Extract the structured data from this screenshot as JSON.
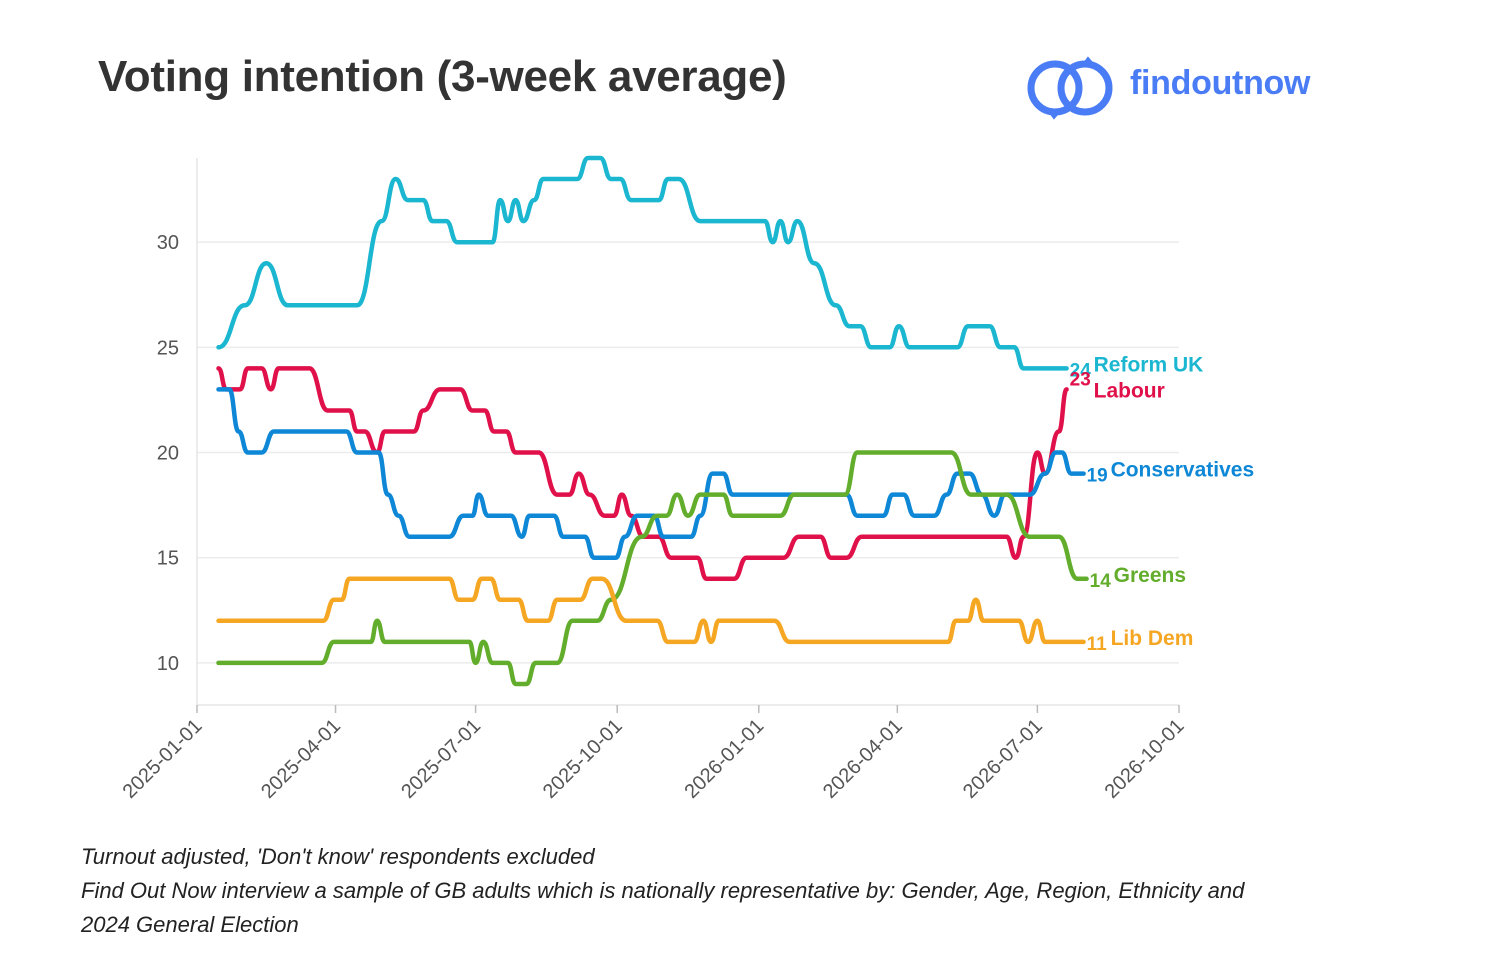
{
  "title": "Voting intention (3-week average)",
  "brand": {
    "name": "findoutnow",
    "color": "#4a7cf5",
    "icon": "linked-rings-icon"
  },
  "footnotes": [
    "Turnout adjusted, 'Don't know' respondents excluded",
    "Find Out Now interview a sample of GB adults which is nationally representative by: Gender, Age, Region, Ethnicity and",
    "2024 General Election"
  ],
  "chart_data": {
    "type": "line",
    "title": "Voting intention (3-week average)",
    "xlabel": "",
    "ylabel": "",
    "x_ticks": [
      "2025-01-01",
      "2025-04-01",
      "2025-07-01",
      "2025-10-01",
      "2026-01-01",
      "2026-04-01",
      "2026-07-01",
      "2026-10-01"
    ],
    "y_ticks": [
      10,
      15,
      20,
      25,
      30
    ],
    "ylim": [
      8,
      34
    ],
    "xlim": [
      "2025-01-01",
      "2026-10-01"
    ],
    "grid": true,
    "legend": "end-of-line labels",
    "series": [
      {
        "name": "Reform UK",
        "color": "#1bb6d0",
        "end_value": "24",
        "points": [
          [
            "2025-01-15",
            25
          ],
          [
            "2025-02-01",
            27
          ],
          [
            "2025-02-15",
            29
          ],
          [
            "2025-03-01",
            27
          ],
          [
            "2025-03-15",
            27
          ],
          [
            "2025-04-01",
            27
          ],
          [
            "2025-04-15",
            27
          ],
          [
            "2025-05-01",
            31
          ],
          [
            "2025-05-10",
            33
          ],
          [
            "2025-05-18",
            32
          ],
          [
            "2025-05-28",
            32
          ],
          [
            "2025-06-03",
            31
          ],
          [
            "2025-06-12",
            31
          ],
          [
            "2025-06-19",
            30
          ],
          [
            "2025-06-28",
            30
          ],
          [
            "2025-07-05",
            30
          ],
          [
            "2025-07-12",
            30
          ],
          [
            "2025-07-17",
            32
          ],
          [
            "2025-07-22",
            31
          ],
          [
            "2025-07-27",
            32
          ],
          [
            "2025-08-01",
            31
          ],
          [
            "2025-08-08",
            32
          ],
          [
            "2025-08-14",
            33
          ],
          [
            "2025-08-22",
            33
          ],
          [
            "2025-09-05",
            33
          ],
          [
            "2025-09-12",
            34
          ],
          [
            "2025-09-20",
            34
          ],
          [
            "2025-09-27",
            33
          ],
          [
            "2025-10-03",
            33
          ],
          [
            "2025-10-10",
            32
          ],
          [
            "2025-10-17",
            32
          ],
          [
            "2025-10-28",
            32
          ],
          [
            "2025-11-03",
            33
          ],
          [
            "2025-11-10",
            33
          ],
          [
            "2025-11-24",
            31
          ],
          [
            "2025-12-05",
            31
          ],
          [
            "2025-12-30",
            31
          ],
          [
            "2026-01-05",
            31
          ],
          [
            "2026-01-10",
            30
          ],
          [
            "2026-01-15",
            31
          ],
          [
            "2026-01-20",
            30
          ],
          [
            "2026-01-26",
            31
          ],
          [
            "2026-02-06",
            29
          ],
          [
            "2026-02-20",
            27
          ],
          [
            "2026-03-01",
            26
          ],
          [
            "2026-03-08",
            26
          ],
          [
            "2026-03-15",
            25
          ],
          [
            "2026-03-22",
            25
          ],
          [
            "2026-03-27",
            25
          ],
          [
            "2026-04-02",
            26
          ],
          [
            "2026-04-09",
            25
          ],
          [
            "2026-04-19",
            25
          ],
          [
            "2026-05-10",
            25
          ],
          [
            "2026-05-17",
            26
          ],
          [
            "2026-05-31",
            26
          ],
          [
            "2026-06-07",
            25
          ],
          [
            "2026-06-16",
            25
          ],
          [
            "2026-06-22",
            24
          ],
          [
            "2026-07-05",
            24
          ],
          [
            "2026-07-20",
            24
          ]
        ]
      },
      {
        "name": "Labour",
        "color": "#e0114a",
        "end_value": "23",
        "points": [
          [
            "2025-01-15",
            24
          ],
          [
            "2025-01-20",
            23
          ],
          [
            "2025-01-29",
            23
          ],
          [
            "2025-02-03",
            24
          ],
          [
            "2025-02-12",
            24
          ],
          [
            "2025-02-18",
            23
          ],
          [
            "2025-02-23",
            24
          ],
          [
            "2025-03-01",
            24
          ],
          [
            "2025-03-15",
            24
          ],
          [
            "2025-03-27",
            22
          ],
          [
            "2025-04-01",
            22
          ],
          [
            "2025-04-10",
            22
          ],
          [
            "2025-04-15",
            21
          ],
          [
            "2025-04-20",
            21
          ],
          [
            "2025-04-28",
            20
          ],
          [
            "2025-05-03",
            21
          ],
          [
            "2025-05-12",
            21
          ],
          [
            "2025-05-22",
            21
          ],
          [
            "2025-05-28",
            22
          ],
          [
            "2025-06-08",
            23
          ],
          [
            "2025-06-21",
            23
          ],
          [
            "2025-06-29",
            22
          ],
          [
            "2025-07-07",
            22
          ],
          [
            "2025-07-13",
            21
          ],
          [
            "2025-07-21",
            21
          ],
          [
            "2025-07-27",
            20
          ],
          [
            "2025-08-03",
            20
          ],
          [
            "2025-08-11",
            20
          ],
          [
            "2025-08-23",
            18
          ],
          [
            "2025-08-31",
            18
          ],
          [
            "2025-09-06",
            19
          ],
          [
            "2025-09-13",
            18
          ],
          [
            "2025-09-23",
            17
          ],
          [
            "2025-09-29",
            17
          ],
          [
            "2025-10-04",
            18
          ],
          [
            "2025-10-10",
            17
          ],
          [
            "2025-10-18",
            16
          ],
          [
            "2025-10-24",
            16
          ],
          [
            "2025-10-28",
            16
          ],
          [
            "2025-11-05",
            15
          ],
          [
            "2025-11-12",
            15
          ],
          [
            "2025-11-22",
            15
          ],
          [
            "2025-11-28",
            14
          ],
          [
            "2025-12-08",
            14
          ],
          [
            "2025-12-16",
            14
          ],
          [
            "2025-12-24",
            15
          ],
          [
            "2026-01-07",
            15
          ],
          [
            "2026-01-17",
            15
          ],
          [
            "2026-01-27",
            16
          ],
          [
            "2026-02-10",
            16
          ],
          [
            "2026-02-17",
            15
          ],
          [
            "2026-02-27",
            15
          ],
          [
            "2026-03-09",
            16
          ],
          [
            "2026-03-19",
            16
          ],
          [
            "2026-06-11",
            16
          ],
          [
            "2026-06-17",
            15
          ],
          [
            "2026-06-22",
            16
          ],
          [
            "2026-07-01",
            20
          ],
          [
            "2026-07-06",
            19
          ],
          [
            "2026-07-15",
            21
          ],
          [
            "2026-07-20",
            23
          ]
        ]
      },
      {
        "name": "Conservatives",
        "color": "#0d87d6",
        "end_value": "19",
        "points": [
          [
            "2025-01-15",
            23
          ],
          [
            "2025-01-22",
            23
          ],
          [
            "2025-01-28",
            21
          ],
          [
            "2025-02-03",
            20
          ],
          [
            "2025-02-12",
            20
          ],
          [
            "2025-02-20",
            21
          ],
          [
            "2025-03-15",
            21
          ],
          [
            "2025-04-01",
            21
          ],
          [
            "2025-04-08",
            21
          ],
          [
            "2025-04-15",
            20
          ],
          [
            "2025-04-29",
            20
          ],
          [
            "2025-05-05",
            18
          ],
          [
            "2025-05-12",
            17
          ],
          [
            "2025-05-19",
            16
          ],
          [
            "2025-06-14",
            16
          ],
          [
            "2025-06-23",
            17
          ],
          [
            "2025-06-29",
            17
          ],
          [
            "2025-07-03",
            18
          ],
          [
            "2025-07-09",
            17
          ],
          [
            "2025-07-24",
            17
          ],
          [
            "2025-07-31",
            16
          ],
          [
            "2025-08-05",
            17
          ],
          [
            "2025-08-21",
            17
          ],
          [
            "2025-08-27",
            16
          ],
          [
            "2025-09-10",
            16
          ],
          [
            "2025-09-16",
            15
          ],
          [
            "2025-09-30",
            15
          ],
          [
            "2025-10-06",
            16
          ],
          [
            "2025-10-14",
            17
          ],
          [
            "2025-10-25",
            17
          ],
          [
            "2025-10-31",
            16
          ],
          [
            "2025-11-18",
            16
          ],
          [
            "2025-11-24",
            17
          ],
          [
            "2025-12-02",
            19
          ],
          [
            "2025-12-09",
            19
          ],
          [
            "2025-12-15",
            18
          ],
          [
            "2026-01-04",
            18
          ],
          [
            "2026-01-24",
            18
          ],
          [
            "2026-02-27",
            18
          ],
          [
            "2026-03-06",
            17
          ],
          [
            "2026-03-23",
            17
          ],
          [
            "2026-03-29",
            18
          ],
          [
            "2026-04-05",
            18
          ],
          [
            "2026-04-12",
            17
          ],
          [
            "2026-04-25",
            17
          ],
          [
            "2026-05-03",
            18
          ],
          [
            "2026-05-10",
            19
          ],
          [
            "2026-05-18",
            19
          ],
          [
            "2026-05-26",
            18
          ],
          [
            "2026-06-03",
            17
          ],
          [
            "2026-06-10",
            18
          ],
          [
            "2026-06-26",
            18
          ],
          [
            "2026-07-06",
            19
          ],
          [
            "2026-07-13",
            20
          ],
          [
            "2026-07-17",
            20
          ],
          [
            "2026-07-23",
            19
          ],
          [
            "2026-07-31",
            19
          ]
        ]
      },
      {
        "name": "Greens",
        "color": "#63ad2c",
        "end_value": "14",
        "points": [
          [
            "2025-01-15",
            10
          ],
          [
            "2025-03-01",
            10
          ],
          [
            "2025-03-23",
            10
          ],
          [
            "2025-03-31",
            11
          ],
          [
            "2025-04-15",
            11
          ],
          [
            "2025-04-24",
            11
          ],
          [
            "2025-04-28",
            12
          ],
          [
            "2025-05-03",
            11
          ],
          [
            "2025-06-01",
            11
          ],
          [
            "2025-06-27",
            11
          ],
          [
            "2025-07-01",
            10
          ],
          [
            "2025-07-06",
            11
          ],
          [
            "2025-07-12",
            10
          ],
          [
            "2025-07-22",
            10
          ],
          [
            "2025-07-27",
            9
          ],
          [
            "2025-08-03",
            9
          ],
          [
            "2025-08-09",
            10
          ],
          [
            "2025-08-23",
            10
          ],
          [
            "2025-09-02",
            12
          ],
          [
            "2025-09-18",
            12
          ],
          [
            "2025-09-27",
            13
          ],
          [
            "2025-10-17",
            16
          ],
          [
            "2025-10-27",
            17
          ],
          [
            "2025-11-02",
            17
          ],
          [
            "2025-11-09",
            18
          ],
          [
            "2025-11-16",
            17
          ],
          [
            "2025-11-24",
            18
          ],
          [
            "2025-12-09",
            18
          ],
          [
            "2025-12-15",
            17
          ],
          [
            "2025-12-24",
            17
          ],
          [
            "2026-01-15",
            17
          ],
          [
            "2026-01-24",
            18
          ],
          [
            "2026-02-11",
            18
          ],
          [
            "2026-02-26",
            18
          ],
          [
            "2026-03-06",
            20
          ],
          [
            "2026-03-25",
            20
          ],
          [
            "2026-05-06",
            20
          ],
          [
            "2026-05-19",
            18
          ],
          [
            "2026-06-11",
            18
          ],
          [
            "2026-06-26",
            16
          ],
          [
            "2026-07-15",
            16
          ],
          [
            "2026-07-27",
            14
          ],
          [
            "2026-08-02",
            14
          ]
        ]
      },
      {
        "name": "Lib Dem",
        "color": "#f5a623",
        "end_value": "11",
        "points": [
          [
            "2025-01-15",
            12
          ],
          [
            "2025-02-12",
            12
          ],
          [
            "2025-03-15",
            12
          ],
          [
            "2025-03-24",
            12
          ],
          [
            "2025-03-31",
            13
          ],
          [
            "2025-04-05",
            13
          ],
          [
            "2025-04-10",
            14
          ],
          [
            "2025-05-01",
            14
          ],
          [
            "2025-05-25",
            14
          ],
          [
            "2025-06-14",
            14
          ],
          [
            "2025-06-20",
            13
          ],
          [
            "2025-06-29",
            13
          ],
          [
            "2025-07-05",
            14
          ],
          [
            "2025-07-11",
            14
          ],
          [
            "2025-07-17",
            13
          ],
          [
            "2025-07-29",
            13
          ],
          [
            "2025-08-04",
            12
          ],
          [
            "2025-08-17",
            12
          ],
          [
            "2025-08-23",
            13
          ],
          [
            "2025-09-07",
            13
          ],
          [
            "2025-09-15",
            14
          ],
          [
            "2025-09-21",
            14
          ],
          [
            "2025-10-07",
            12
          ],
          [
            "2025-10-27",
            12
          ],
          [
            "2025-11-03",
            11
          ],
          [
            "2025-11-17",
            11
          ],
          [
            "2025-11-20",
            11
          ],
          [
            "2025-11-26",
            12
          ],
          [
            "2025-12-01",
            11
          ],
          [
            "2025-12-06",
            12
          ],
          [
            "2025-12-21",
            12
          ],
          [
            "2026-01-11",
            12
          ],
          [
            "2026-01-21",
            11
          ],
          [
            "2026-02-01",
            11
          ],
          [
            "2026-03-15",
            11
          ],
          [
            "2026-04-15",
            11
          ],
          [
            "2026-05-04",
            11
          ],
          [
            "2026-05-09",
            12
          ],
          [
            "2026-05-17",
            12
          ],
          [
            "2026-05-22",
            13
          ],
          [
            "2026-05-27",
            12
          ],
          [
            "2026-06-08",
            12
          ],
          [
            "2026-06-19",
            12
          ],
          [
            "2026-06-25",
            11
          ],
          [
            "2026-07-01",
            12
          ],
          [
            "2026-07-06",
            11
          ],
          [
            "2026-07-20",
            11
          ],
          [
            "2026-07-31",
            11
          ]
        ]
      }
    ]
  }
}
